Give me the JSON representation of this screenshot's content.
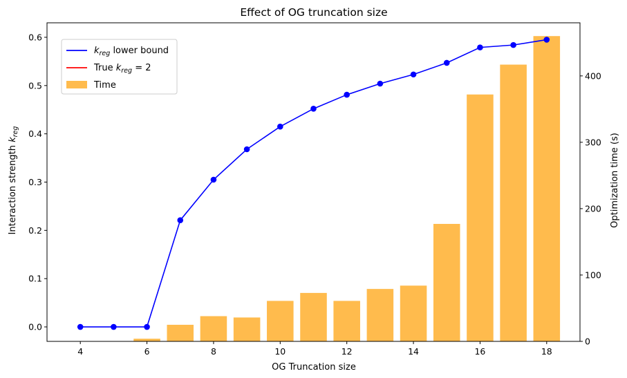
{
  "chart_data": {
    "type": "bar+line",
    "title": "Effect of OG truncation size",
    "xlabel": "OG Truncation size",
    "ylabel_left": "Interaction strength k_reg",
    "ylabel_left_text": "Interaction strength ",
    "ylabel_left_sym": "k",
    "ylabel_left_sub": "reg",
    "ylabel_right": "Optimization time (s)",
    "xlim": [
      3,
      19
    ],
    "ylim_left": [
      -0.03,
      0.63
    ],
    "ylim_right": [
      0,
      480
    ],
    "xticks": [
      4,
      6,
      8,
      10,
      12,
      14,
      16,
      18
    ],
    "yticks_left": [
      "0.0",
      "0.1",
      "0.2",
      "0.3",
      "0.4",
      "0.5",
      "0.6"
    ],
    "yticks_right": [
      "0",
      "100",
      "200",
      "300",
      "400"
    ],
    "grid": false,
    "legend_position": "upper-left",
    "legend": [
      {
        "pre": "",
        "sym": "k",
        "sub": "reg",
        "post": " lower bound",
        "type": "line",
        "color": "#0000ff"
      },
      {
        "pre": "True ",
        "sym": "k",
        "sub": "reg",
        "post": " = 2",
        "type": "line",
        "color": "#ff0000"
      },
      {
        "pre": "Time",
        "sym": "",
        "sub": "",
        "post": "",
        "type": "bar",
        "color": "#ffbb4d"
      }
    ],
    "x": [
      4,
      5,
      6,
      7,
      8,
      9,
      10,
      11,
      12,
      13,
      14,
      15,
      16,
      17,
      18
    ],
    "series": [
      {
        "name": "k_reg lower bound",
        "axis": "left",
        "kind": "line",
        "color": "#0000ff",
        "values": [
          0.0,
          0.0,
          0.0,
          0.221,
          0.305,
          0.368,
          0.415,
          0.452,
          0.481,
          0.504,
          0.523,
          0.547,
          0.579,
          0.584,
          0.595
        ]
      },
      {
        "name": "Time",
        "axis": "right",
        "kind": "bar",
        "color": "#ffbb4d",
        "values": [
          0,
          0,
          4,
          25,
          38,
          36,
          61,
          73,
          61,
          79,
          84,
          177,
          372,
          417,
          460
        ]
      }
    ]
  }
}
